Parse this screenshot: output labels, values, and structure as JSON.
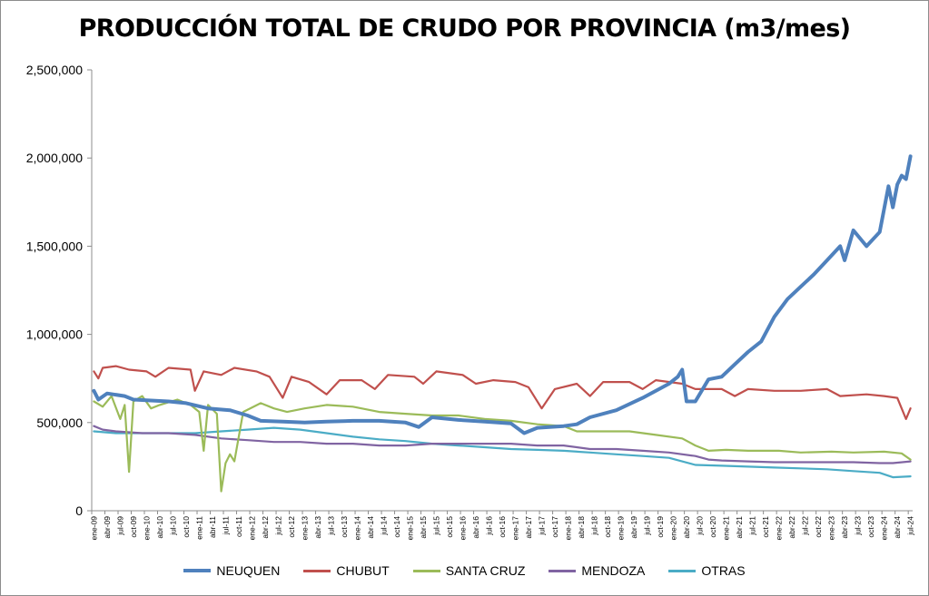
{
  "chart_data": {
    "type": "line",
    "title": "PRODUCCIÓN TOTAL DE CRUDO POR PROVINCIA (m3/mes)",
    "xlabel": "",
    "ylabel": "",
    "ylim": [
      0,
      2500000
    ],
    "y_ticks": [
      0,
      500000,
      1000000,
      1500000,
      2000000,
      2500000
    ],
    "y_tick_labels": [
      "0",
      "500,000",
      "1,000,000",
      "1,500,000",
      "2,000,000",
      "2,500,000"
    ],
    "x_start": "2009-01",
    "x_end": "2024-07",
    "x_tick_labels": [
      "ene-09",
      "abr-09",
      "jul-09",
      "oct-09",
      "ene-10",
      "abr-10",
      "jul-10",
      "oct-10",
      "ene-11",
      "abr-11",
      "jul-11",
      "oct-11",
      "ene-12",
      "abr-12",
      "jul-12",
      "oct-12",
      "ene-13",
      "abr-13",
      "jul-13",
      "oct-13",
      "ene-14",
      "abr-14",
      "jul-14",
      "oct-14",
      "ene-15",
      "abr-15",
      "jul-15",
      "oct-15",
      "ene-16",
      "abr-16",
      "jul-16",
      "oct-16",
      "ene-17",
      "abr-17",
      "jul-17",
      "oct-17",
      "ene-18",
      "abr-18",
      "jul-18",
      "oct-18",
      "ene-19",
      "abr-19",
      "jul-19",
      "oct-19",
      "ene-20",
      "abr-20",
      "jul-20",
      "oct-20",
      "ene-21",
      "abr-21",
      "jul-21",
      "oct-21",
      "ene-22",
      "abr-22",
      "jul-22",
      "oct-22",
      "ene-23",
      "abr-23",
      "jul-23",
      "oct-23",
      "ene-24",
      "abr-24",
      "jul-24"
    ],
    "grid": false,
    "legend_position": "bottom",
    "series": [
      {
        "name": "NEUQUEN",
        "color": "#4f81bd",
        "width": 4,
        "points": [
          [
            "2009-01",
            680000
          ],
          [
            "2009-02",
            630000
          ],
          [
            "2009-04",
            665000
          ],
          [
            "2009-08",
            650000
          ],
          [
            "2009-10",
            630000
          ],
          [
            "2010-06",
            620000
          ],
          [
            "2010-10",
            610000
          ],
          [
            "2011-03",
            580000
          ],
          [
            "2011-08",
            570000
          ],
          [
            "2011-12",
            540000
          ],
          [
            "2012-03",
            510000
          ],
          [
            "2012-08",
            505000
          ],
          [
            "2013-01",
            500000
          ],
          [
            "2013-06",
            505000
          ],
          [
            "2013-12",
            510000
          ],
          [
            "2014-06",
            510000
          ],
          [
            "2014-12",
            500000
          ],
          [
            "2015-03",
            475000
          ],
          [
            "2015-06",
            530000
          ],
          [
            "2015-12",
            515000
          ],
          [
            "2016-06",
            505000
          ],
          [
            "2016-12",
            495000
          ],
          [
            "2017-03",
            440000
          ],
          [
            "2017-06",
            470000
          ],
          [
            "2017-12",
            480000
          ],
          [
            "2018-03",
            490000
          ],
          [
            "2018-06",
            530000
          ],
          [
            "2018-12",
            570000
          ],
          [
            "2019-06",
            640000
          ],
          [
            "2019-12",
            720000
          ],
          [
            "2020-02",
            760000
          ],
          [
            "2020-03",
            800000
          ],
          [
            "2020-04",
            620000
          ],
          [
            "2020-06",
            620000
          ],
          [
            "2020-09",
            745000
          ],
          [
            "2020-12",
            760000
          ],
          [
            "2021-03",
            830000
          ],
          [
            "2021-06",
            900000
          ],
          [
            "2021-09",
            960000
          ],
          [
            "2021-12",
            1100000
          ],
          [
            "2022-03",
            1200000
          ],
          [
            "2022-06",
            1270000
          ],
          [
            "2022-09",
            1340000
          ],
          [
            "2022-12",
            1420000
          ],
          [
            "2023-03",
            1500000
          ],
          [
            "2023-04",
            1420000
          ],
          [
            "2023-06",
            1590000
          ],
          [
            "2023-09",
            1500000
          ],
          [
            "2023-12",
            1580000
          ],
          [
            "2024-02",
            1840000
          ],
          [
            "2024-03",
            1720000
          ],
          [
            "2024-04",
            1850000
          ],
          [
            "2024-05",
            1900000
          ],
          [
            "2024-06",
            1880000
          ],
          [
            "2024-07",
            2010000
          ]
        ]
      },
      {
        "name": "CHUBUT",
        "color": "#c0504d",
        "width": 2.2,
        "points": [
          [
            "2009-01",
            790000
          ],
          [
            "2009-02",
            750000
          ],
          [
            "2009-03",
            810000
          ],
          [
            "2009-06",
            820000
          ],
          [
            "2009-09",
            800000
          ],
          [
            "2010-01",
            790000
          ],
          [
            "2010-03",
            760000
          ],
          [
            "2010-06",
            810000
          ],
          [
            "2010-11",
            800000
          ],
          [
            "2010-12",
            680000
          ],
          [
            "2011-02",
            790000
          ],
          [
            "2011-06",
            770000
          ],
          [
            "2011-09",
            810000
          ],
          [
            "2012-02",
            790000
          ],
          [
            "2012-05",
            760000
          ],
          [
            "2012-08",
            640000
          ],
          [
            "2012-10",
            760000
          ],
          [
            "2013-02",
            730000
          ],
          [
            "2013-06",
            660000
          ],
          [
            "2013-09",
            740000
          ],
          [
            "2014-02",
            740000
          ],
          [
            "2014-05",
            690000
          ],
          [
            "2014-08",
            770000
          ],
          [
            "2015-02",
            760000
          ],
          [
            "2015-04",
            720000
          ],
          [
            "2015-07",
            790000
          ],
          [
            "2016-01",
            770000
          ],
          [
            "2016-04",
            720000
          ],
          [
            "2016-08",
            740000
          ],
          [
            "2017-01",
            730000
          ],
          [
            "2017-04",
            700000
          ],
          [
            "2017-07",
            580000
          ],
          [
            "2017-10",
            690000
          ],
          [
            "2018-03",
            720000
          ],
          [
            "2018-06",
            650000
          ],
          [
            "2018-09",
            730000
          ],
          [
            "2019-03",
            730000
          ],
          [
            "2019-06",
            690000
          ],
          [
            "2019-09",
            740000
          ],
          [
            "2020-03",
            720000
          ],
          [
            "2020-06",
            690000
          ],
          [
            "2020-12",
            690000
          ],
          [
            "2021-03",
            650000
          ],
          [
            "2021-06",
            690000
          ],
          [
            "2021-12",
            680000
          ],
          [
            "2022-06",
            680000
          ],
          [
            "2022-12",
            690000
          ],
          [
            "2023-03",
            650000
          ],
          [
            "2023-09",
            660000
          ],
          [
            "2024-01",
            650000
          ],
          [
            "2024-04",
            640000
          ],
          [
            "2024-06",
            520000
          ],
          [
            "2024-07",
            580000
          ]
        ]
      },
      {
        "name": "SANTA CRUZ",
        "color": "#9bbb59",
        "width": 2.2,
        "points": [
          [
            "2009-01",
            620000
          ],
          [
            "2009-03",
            590000
          ],
          [
            "2009-05",
            650000
          ],
          [
            "2009-07",
            520000
          ],
          [
            "2009-08",
            600000
          ],
          [
            "2009-09",
            220000
          ],
          [
            "2009-10",
            620000
          ],
          [
            "2009-12",
            650000
          ],
          [
            "2010-02",
            580000
          ],
          [
            "2010-04",
            600000
          ],
          [
            "2010-08",
            630000
          ],
          [
            "2010-11",
            600000
          ],
          [
            "2011-01",
            560000
          ],
          [
            "2011-02",
            340000
          ],
          [
            "2011-03",
            600000
          ],
          [
            "2011-05",
            550000
          ],
          [
            "2011-06",
            110000
          ],
          [
            "2011-07",
            270000
          ],
          [
            "2011-08",
            320000
          ],
          [
            "2011-09",
            280000
          ],
          [
            "2011-11",
            560000
          ],
          [
            "2012-03",
            610000
          ],
          [
            "2012-06",
            580000
          ],
          [
            "2012-09",
            560000
          ],
          [
            "2013-01",
            580000
          ],
          [
            "2013-06",
            600000
          ],
          [
            "2013-12",
            590000
          ],
          [
            "2014-06",
            560000
          ],
          [
            "2014-12",
            550000
          ],
          [
            "2015-06",
            540000
          ],
          [
            "2015-12",
            540000
          ],
          [
            "2016-06",
            520000
          ],
          [
            "2016-12",
            510000
          ],
          [
            "2017-06",
            490000
          ],
          [
            "2017-12",
            480000
          ],
          [
            "2018-03",
            450000
          ],
          [
            "2018-09",
            450000
          ],
          [
            "2019-03",
            450000
          ],
          [
            "2019-09",
            430000
          ],
          [
            "2020-03",
            410000
          ],
          [
            "2020-06",
            370000
          ],
          [
            "2020-09",
            340000
          ],
          [
            "2021-01",
            345000
          ],
          [
            "2021-06",
            340000
          ],
          [
            "2022-01",
            340000
          ],
          [
            "2022-06",
            330000
          ],
          [
            "2023-01",
            335000
          ],
          [
            "2023-06",
            330000
          ],
          [
            "2024-01",
            335000
          ],
          [
            "2024-05",
            325000
          ],
          [
            "2024-07",
            290000
          ]
        ]
      },
      {
        "name": "MENDOZA",
        "color": "#8064a2",
        "width": 2.2,
        "points": [
          [
            "2009-01",
            480000
          ],
          [
            "2009-03",
            460000
          ],
          [
            "2009-06",
            450000
          ],
          [
            "2009-12",
            440000
          ],
          [
            "2010-06",
            440000
          ],
          [
            "2010-12",
            430000
          ],
          [
            "2011-06",
            410000
          ],
          [
            "2011-12",
            400000
          ],
          [
            "2012-06",
            390000
          ],
          [
            "2012-12",
            390000
          ],
          [
            "2013-06",
            380000
          ],
          [
            "2013-12",
            380000
          ],
          [
            "2014-06",
            370000
          ],
          [
            "2014-12",
            370000
          ],
          [
            "2015-06",
            380000
          ],
          [
            "2015-12",
            380000
          ],
          [
            "2016-06",
            380000
          ],
          [
            "2016-12",
            380000
          ],
          [
            "2017-06",
            370000
          ],
          [
            "2017-12",
            370000
          ],
          [
            "2018-06",
            350000
          ],
          [
            "2018-12",
            350000
          ],
          [
            "2019-06",
            340000
          ],
          [
            "2019-12",
            330000
          ],
          [
            "2020-06",
            310000
          ],
          [
            "2020-09",
            290000
          ],
          [
            "2020-12",
            285000
          ],
          [
            "2021-06",
            280000
          ],
          [
            "2021-12",
            275000
          ],
          [
            "2022-06",
            275000
          ],
          [
            "2022-12",
            275000
          ],
          [
            "2023-06",
            275000
          ],
          [
            "2023-12",
            270000
          ],
          [
            "2024-03",
            270000
          ],
          [
            "2024-07",
            280000
          ]
        ]
      },
      {
        "name": "OTRAS",
        "color": "#4bacc6",
        "width": 2.2,
        "points": [
          [
            "2009-01",
            450000
          ],
          [
            "2009-06",
            440000
          ],
          [
            "2009-12",
            440000
          ],
          [
            "2010-06",
            440000
          ],
          [
            "2010-12",
            440000
          ],
          [
            "2011-06",
            450000
          ],
          [
            "2011-12",
            460000
          ],
          [
            "2012-06",
            470000
          ],
          [
            "2012-12",
            460000
          ],
          [
            "2013-06",
            440000
          ],
          [
            "2013-12",
            420000
          ],
          [
            "2014-06",
            405000
          ],
          [
            "2014-12",
            395000
          ],
          [
            "2015-06",
            380000
          ],
          [
            "2015-12",
            370000
          ],
          [
            "2016-06",
            360000
          ],
          [
            "2016-12",
            350000
          ],
          [
            "2017-06",
            345000
          ],
          [
            "2017-12",
            340000
          ],
          [
            "2018-06",
            330000
          ],
          [
            "2018-12",
            320000
          ],
          [
            "2019-06",
            310000
          ],
          [
            "2019-12",
            300000
          ],
          [
            "2020-06",
            260000
          ],
          [
            "2020-12",
            255000
          ],
          [
            "2021-06",
            250000
          ],
          [
            "2021-12",
            245000
          ],
          [
            "2022-06",
            240000
          ],
          [
            "2022-12",
            235000
          ],
          [
            "2023-06",
            225000
          ],
          [
            "2023-12",
            215000
          ],
          [
            "2024-03",
            190000
          ],
          [
            "2024-07",
            195000
          ]
        ]
      }
    ]
  }
}
